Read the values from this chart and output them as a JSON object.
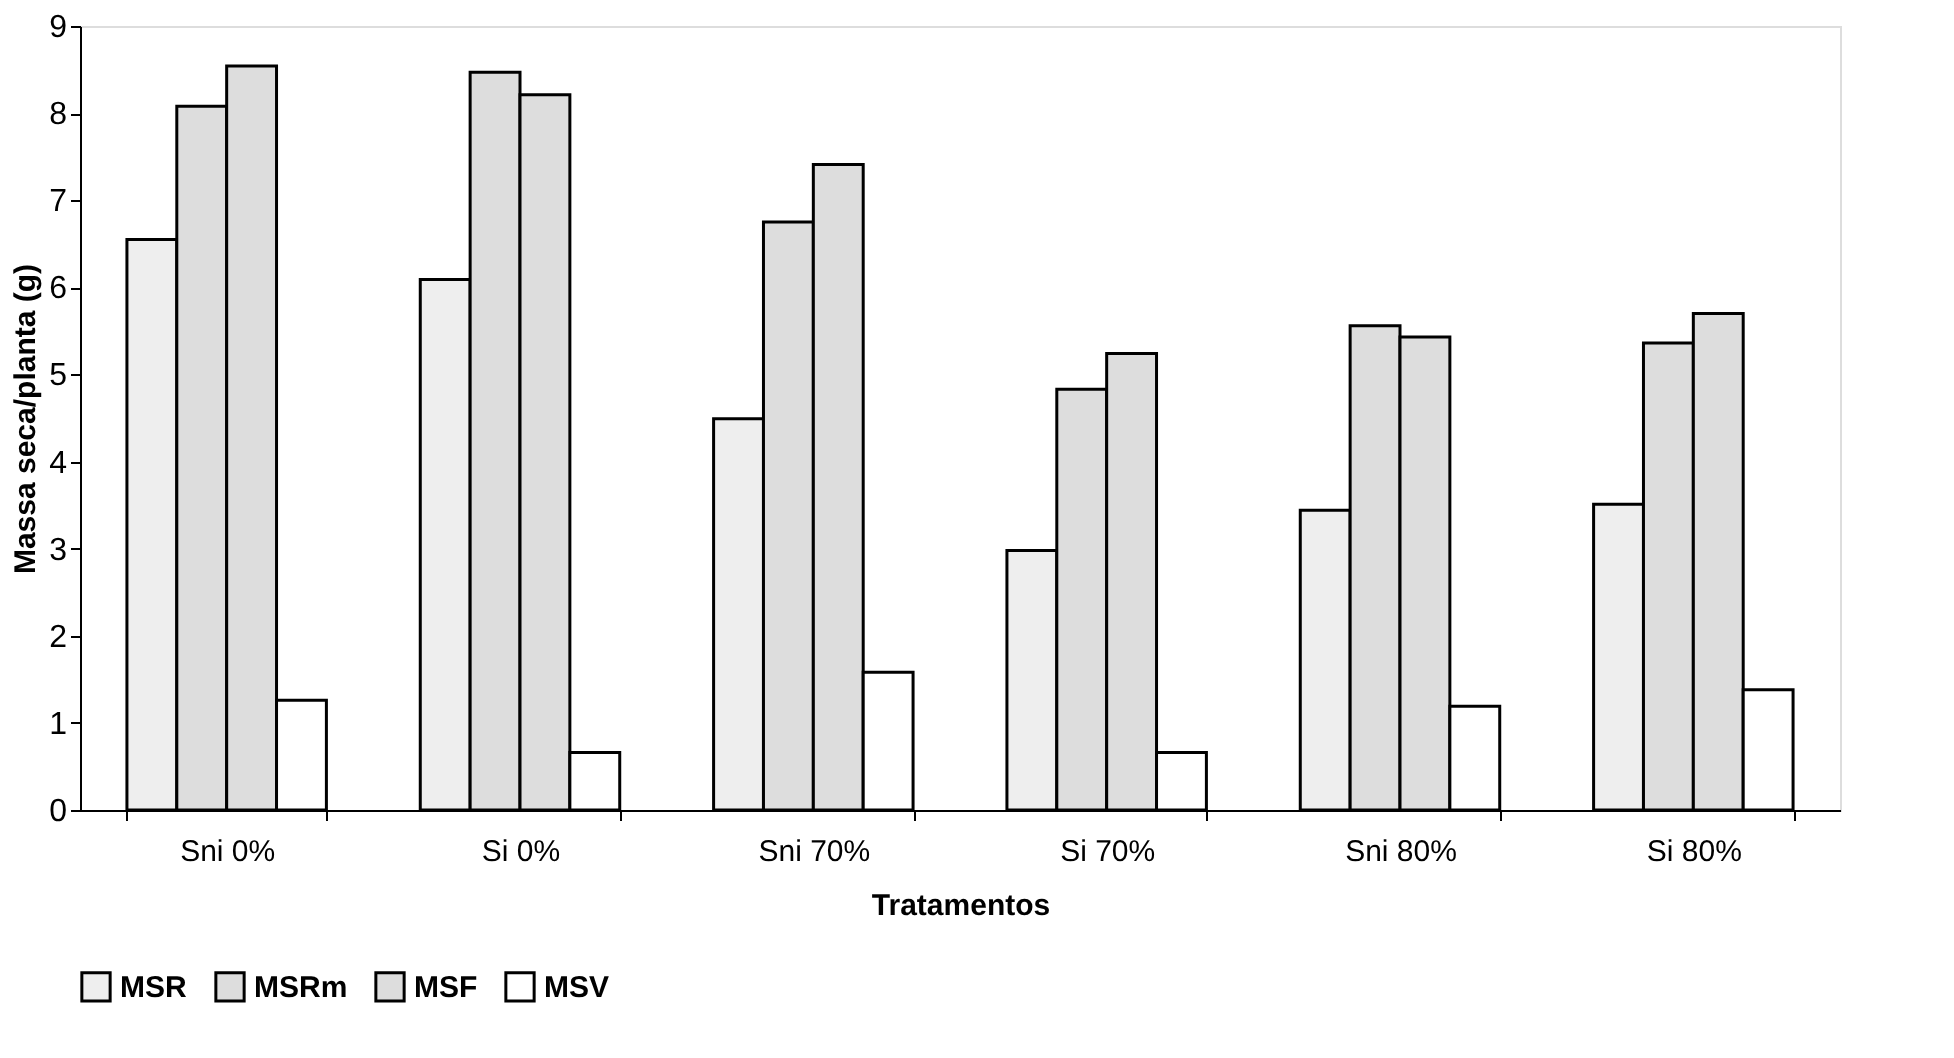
{
  "chart_data": {
    "type": "bar",
    "xlabel": "Tratamentos",
    "ylabel": "Massa seca/planta (g)",
    "categories": [
      "Sni 0%",
      "Si 0%",
      "Sni 70%",
      "Si 70%",
      "Sni 80%",
      "Si 80%"
    ],
    "series": [
      {
        "name": "MSR",
        "color": "#eeeeee",
        "values": [
          6.55,
          6.09,
          4.49,
          2.98,
          3.44,
          3.51
        ]
      },
      {
        "name": "MSRm",
        "color": "#dddddd",
        "values": [
          8.08,
          8.47,
          6.75,
          4.83,
          5.56,
          5.36
        ]
      },
      {
        "name": "MSF",
        "color": "#dddddd",
        "values": [
          8.54,
          8.21,
          7.41,
          5.24,
          5.43,
          5.7
        ]
      },
      {
        "name": "MSV",
        "color": "#ffffff",
        "values": [
          1.26,
          0.66,
          1.58,
          0.66,
          1.19,
          1.38
        ]
      }
    ],
    "ylim": [
      0,
      9
    ],
    "yticks": [
      0,
      1,
      2,
      3,
      4,
      5,
      6,
      7,
      8,
      9
    ],
    "grid": false,
    "legend": "bottom"
  }
}
